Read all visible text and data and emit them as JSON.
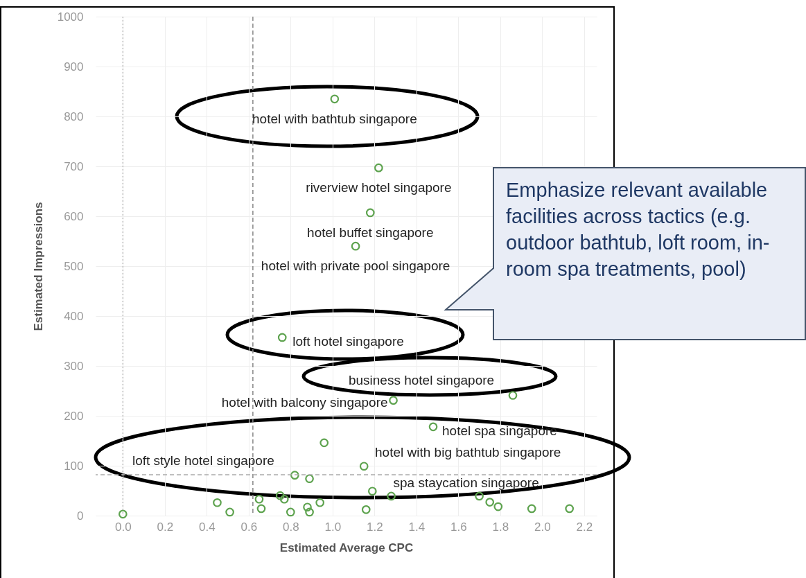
{
  "chart_data": {
    "type": "scatter",
    "xlabel": "Estimated Average CPC",
    "ylabel": "Estimated Impressions",
    "xlim": [
      -0.13,
      2.26
    ],
    "ylim": [
      0,
      1000
    ],
    "xticks": [
      {
        "value": 0,
        "label": "0.0"
      },
      0.2,
      0.4,
      0.6,
      0.8,
      {
        "value": 1,
        "label": "1.0"
      },
      1.2,
      1.4,
      1.6,
      1.8,
      {
        "value": 2,
        "label": "2.0"
      },
      2.2
    ],
    "yticks": [
      0,
      100,
      200,
      300,
      400,
      500,
      600,
      700,
      800,
      900,
      1000
    ],
    "grid": true,
    "marker": "circle",
    "series": [
      {
        "color": "#5ea34f",
        "x": [
          1.01,
          1.22,
          1.18,
          1.11,
          0.76,
          1.86,
          1.29,
          1.48,
          0.96,
          1.15,
          0.82,
          0.89,
          1.19,
          1.28,
          1.7,
          1.75,
          1.79,
          1.95,
          2.13,
          1.16,
          0.94,
          0.88,
          0.89,
          0.8,
          0.75,
          0.77,
          0.65,
          0.66,
          0.51,
          0.45,
          0.0
        ],
        "values": [
          835,
          697,
          607,
          540,
          357,
          241,
          231,
          178,
          146,
          99,
          81,
          74,
          49,
          39,
          39,
          27,
          18,
          14,
          14,
          12,
          26,
          17,
          7,
          7,
          40,
          33,
          33,
          14,
          7,
          26,
          3
        ]
      }
    ],
    "ref_lines": [
      {
        "axis": "x",
        "value": 0.62,
        "line_style": "dashed",
        "color": "#888888"
      },
      {
        "axis": "y",
        "value": 82,
        "line_style": "dashed",
        "color": "#aaaaaa"
      },
      {
        "axis": "x",
        "value": 0,
        "line_style": "dotted",
        "color": "#bbbbbb"
      }
    ],
    "annotations": [
      {
        "text": "hotel with bathtub singapore",
        "x": 1.01,
        "y": 835
      },
      {
        "text": "riverview hotel singapore",
        "x": 1.22,
        "y": 697
      },
      {
        "text": "hotel buffet singapore",
        "x": 1.18,
        "y": 607
      },
      {
        "text": "hotel with private pool singapore",
        "x": 1.11,
        "y": 540
      },
      {
        "text": "loft hotel singapore",
        "x": 0.76,
        "y": 357
      },
      {
        "text": "business hotel singapore",
        "x": 1.86,
        "y": 241
      },
      {
        "text": "hotel with balcony singapore",
        "x": 1.29,
        "y": 231
      },
      {
        "text": "hotel spa singapore",
        "x": 1.48,
        "y": 178
      },
      {
        "text": "hotel with big bathtub singapore",
        "x": 1.15,
        "y": 99
      },
      {
        "text": "loft style hotel singapore",
        "x": 0.82,
        "y": 81
      },
      {
        "text": "spa staycation singapore",
        "x": 1.28,
        "y": 39
      },
      "Emphasize relevant available facilities across tactics (e.g. outdoor bathtub, loft room, in-room spa treatments, pool)"
    ]
  }
}
